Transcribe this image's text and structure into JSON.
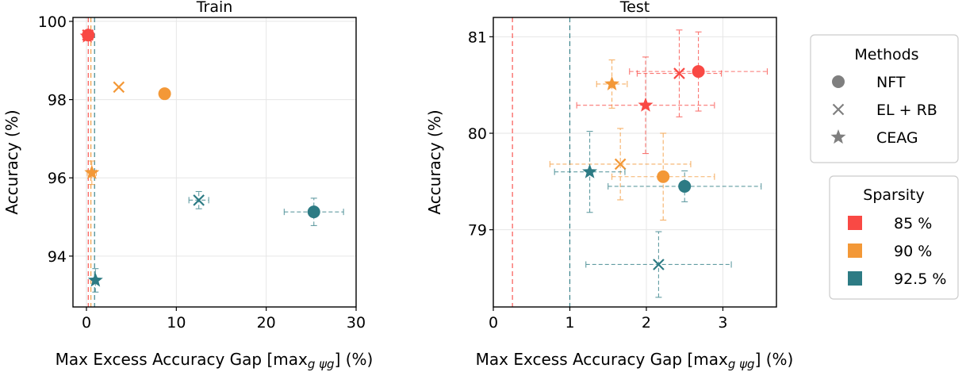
{
  "colors": {
    "85": "#f94944",
    "90": "#f39837",
    "92.5": "#2d7b84",
    "legend_marker": "#7f7f7f"
  },
  "chart_data": [
    {
      "type": "scatter",
      "title": "Train",
      "xlabel": "Max Excess Accuracy Gap [max",
      "xlabel_math": "g ψg",
      "xlabel_suffix": "(%)",
      "ylabel": "Accuracy (%)",
      "xlim": [
        -1.5,
        30
      ],
      "ylim": [
        92.7,
        100.1
      ],
      "xticks": [
        0,
        10,
        20,
        30
      ],
      "yticks": [
        94,
        96,
        98,
        100
      ],
      "vlines": [
        {
          "x": 0.2,
          "sparsity": "85"
        },
        {
          "x": 0.5,
          "sparsity": "90"
        },
        {
          "x": 0.9,
          "sparsity": "92.5"
        }
      ],
      "points": [
        {
          "method": "NFT",
          "sparsity": "85",
          "x": 0.2,
          "y": 99.65,
          "xerr": 0.4,
          "yerr": 0.1
        },
        {
          "method": "EL + RB",
          "sparsity": "85",
          "x": 0.15,
          "y": 99.65,
          "xerr": 0.3,
          "yerr": 0.1
        },
        {
          "method": "CEAG",
          "sparsity": "85",
          "x": 0.1,
          "y": 99.62,
          "xerr": 0.3,
          "yerr": 0.1
        },
        {
          "method": "NFT",
          "sparsity": "90",
          "x": 8.7,
          "y": 98.15,
          "xerr": 0,
          "yerr": 0
        },
        {
          "method": "EL + RB",
          "sparsity": "90",
          "x": 3.6,
          "y": 98.32,
          "xerr": 0,
          "yerr": 0
        },
        {
          "method": "CEAG",
          "sparsity": "90",
          "x": 0.6,
          "y": 96.13,
          "xerr": 0.5,
          "yerr": 0.3
        },
        {
          "method": "NFT",
          "sparsity": "92.5",
          "x": 25.3,
          "y": 95.13,
          "xerr": 3.3,
          "yerr": 0.35
        },
        {
          "method": "EL + RB",
          "sparsity": "92.5",
          "x": 12.5,
          "y": 95.43,
          "xerr": 1.1,
          "yerr": 0.22
        },
        {
          "method": "CEAG",
          "sparsity": "92.5",
          "x": 1.0,
          "y": 93.38,
          "xerr": 0.2,
          "yerr": 0.3
        }
      ]
    },
    {
      "type": "scatter",
      "title": "Test",
      "xlabel": "Max Excess Accuracy Gap [max",
      "xlabel_math": "g ψg",
      "xlabel_suffix": "(%)",
      "ylabel": "Accuracy (%)",
      "xlim": [
        0,
        3.7
      ],
      "ylim": [
        78.2,
        81.2
      ],
      "xticks": [
        0,
        1,
        2,
        3
      ],
      "yticks": [
        79,
        80,
        81
      ],
      "vlines": [
        {
          "x": 0.25,
          "sparsity": "85"
        },
        {
          "x": 1.0,
          "sparsity": "92.5"
        }
      ],
      "points": [
        {
          "method": "NFT",
          "sparsity": "85",
          "x": 2.68,
          "y": 80.64,
          "xerr": 0.9,
          "yerr": 0.41
        },
        {
          "method": "EL + RB",
          "sparsity": "85",
          "x": 2.43,
          "y": 80.62,
          "xerr": 0.55,
          "yerr": 0.45
        },
        {
          "method": "CEAG",
          "sparsity": "85",
          "x": 1.99,
          "y": 80.29,
          "xerr": 0.9,
          "yerr": 0.5
        },
        {
          "method": "NFT",
          "sparsity": "90",
          "x": 2.22,
          "y": 79.55,
          "xerr": 0.67,
          "yerr": 0.45
        },
        {
          "method": "EL + RB",
          "sparsity": "90",
          "x": 1.66,
          "y": 79.68,
          "xerr": 0.92,
          "yerr": 0.37
        },
        {
          "method": "CEAG",
          "sparsity": "90",
          "x": 1.55,
          "y": 80.51,
          "xerr": 0.2,
          "yerr": 0.25
        },
        {
          "method": "NFT",
          "sparsity": "92.5",
          "x": 2.5,
          "y": 79.45,
          "xerr": 1.0,
          "yerr": 0.16
        },
        {
          "method": "EL + RB",
          "sparsity": "92.5",
          "x": 2.16,
          "y": 78.64,
          "xerr": 0.95,
          "yerr": 0.34
        },
        {
          "method": "CEAG",
          "sparsity": "92.5",
          "x": 1.26,
          "y": 79.6,
          "xerr": 0.46,
          "yerr": 0.42
        }
      ]
    }
  ],
  "legend": {
    "methods_title": "Methods",
    "methods": [
      {
        "label": "NFT",
        "marker": "circle"
      },
      {
        "label": "EL + RB",
        "marker": "x"
      },
      {
        "label": "CEAG",
        "marker": "star"
      }
    ],
    "sparsity_title": "Sparsity",
    "sparsity": [
      {
        "label": "85 %",
        "key": "85"
      },
      {
        "label": "90 %",
        "key": "90"
      },
      {
        "label": "92.5 %",
        "key": "92.5"
      }
    ]
  }
}
